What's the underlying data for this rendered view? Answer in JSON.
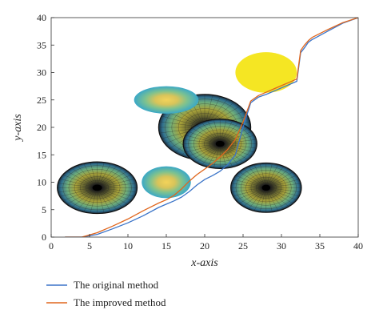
{
  "chart_data": {
    "type": "line",
    "xlabel": "x-axis",
    "ylabel": "y-axis",
    "xlim": [
      0,
      40
    ],
    "ylim": [
      0,
      40
    ],
    "xticks": [
      0,
      5,
      10,
      15,
      20,
      25,
      30,
      35,
      40
    ],
    "yticks": [
      0,
      5,
      10,
      15,
      20,
      25,
      30,
      35,
      40
    ],
    "grid": false,
    "legend_position": "below plot",
    "series": [
      {
        "name": "The original method",
        "color": "#3b74c8",
        "x": [
          1.8,
          4,
          6,
          8,
          10,
          12,
          14,
          15,
          16,
          17,
          18,
          19,
          20,
          21,
          22,
          23,
          24,
          25,
          26,
          27,
          28,
          29,
          30,
          31,
          32,
          32.5,
          33,
          33.5,
          34,
          36,
          38,
          40
        ],
        "y": [
          0,
          0,
          0.5,
          1.5,
          2.6,
          3.9,
          5.4,
          6.0,
          6.6,
          7.3,
          8.3,
          9.5,
          10.5,
          11.2,
          12.0,
          13.2,
          15.0,
          20.0,
          24.5,
          25.5,
          26.0,
          26.6,
          27.2,
          27.8,
          28.4,
          33.6,
          34.5,
          35.5,
          36.0,
          37.5,
          39.0,
          40.0
        ]
      },
      {
        "name": "The improved method",
        "color": "#e0661d",
        "x": [
          1.8,
          4,
          6,
          8,
          10,
          12,
          14,
          15,
          16,
          17,
          18,
          19,
          20,
          21,
          22,
          23,
          24,
          25,
          26,
          27,
          28,
          29,
          30,
          31,
          32,
          32.5,
          33,
          33.5,
          34,
          36,
          38,
          40
        ],
        "y": [
          0,
          0,
          0.8,
          2.0,
          3.3,
          4.8,
          6.2,
          6.8,
          7.6,
          8.8,
          10.2,
          11.4,
          12.4,
          13.4,
          14.6,
          16.0,
          17.8,
          21.0,
          24.8,
          25.8,
          26.4,
          27.0,
          27.6,
          28.2,
          28.8,
          34.0,
          35.0,
          35.8,
          36.4,
          37.8,
          39.1,
          40.0
        ]
      }
    ],
    "obstacles": [
      {
        "type": "radial-dark",
        "cx": 6,
        "cy": 9,
        "rx": 5.2,
        "ry": 4.7
      },
      {
        "type": "radial-dark",
        "cx": 20,
        "cy": 20,
        "rx": 6,
        "ry": 6
      },
      {
        "type": "radial-dark",
        "cx": 22,
        "cy": 17,
        "rx": 4.8,
        "ry": 4.5
      },
      {
        "type": "radial-dark",
        "cx": 28,
        "cy": 9,
        "rx": 4.6,
        "ry": 4.5
      },
      {
        "type": "gradient-blue",
        "cx": 15,
        "cy": 25,
        "rx": 4.2,
        "ry": 2.5
      },
      {
        "type": "gradient-blue",
        "cx": 15,
        "cy": 10,
        "rx": 3.2,
        "ry": 2.9
      },
      {
        "type": "solid-yellow",
        "cx": 28,
        "cy": 30,
        "rx": 4,
        "ry": 3.7,
        "color": "#f5e623"
      }
    ]
  }
}
